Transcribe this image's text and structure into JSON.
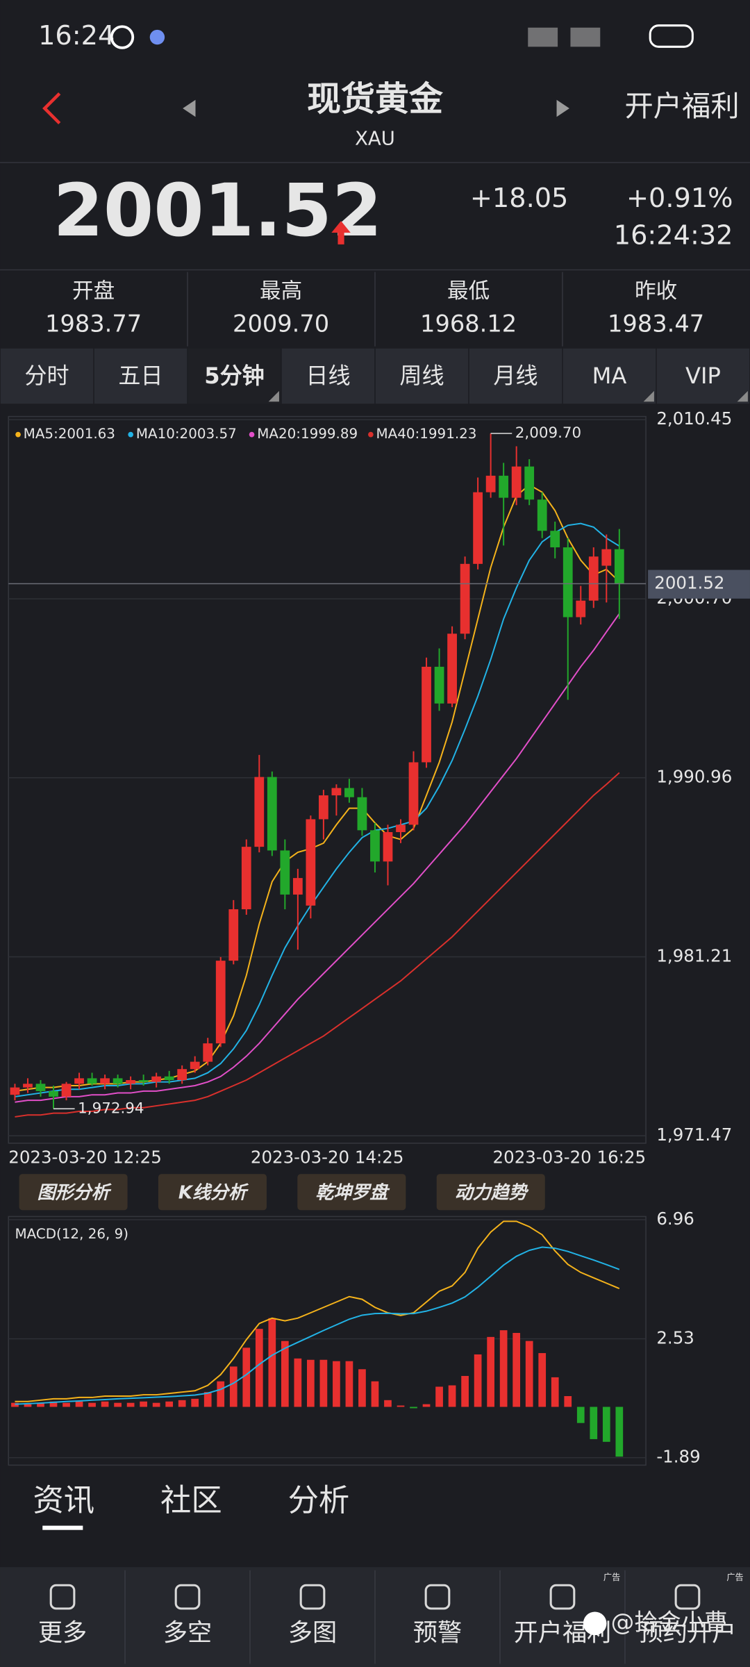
{
  "status_bar": {
    "time": "16:24"
  },
  "header": {
    "title": "现货黄金",
    "subtitle": "XAU",
    "action": "开户福利"
  },
  "quote": {
    "price": "2001.52",
    "change": "+18.05",
    "change_pct": "+0.91%",
    "time": "16:24:32"
  },
  "stats": [
    {
      "label": "开盘",
      "value": "1983.77"
    },
    {
      "label": "最高",
      "value": "2009.70"
    },
    {
      "label": "最低",
      "value": "1968.12"
    },
    {
      "label": "昨收",
      "value": "1983.47"
    }
  ],
  "tabs": [
    "分时",
    "五日",
    "5分钟",
    "日线",
    "周线",
    "月线",
    "MA",
    "VIP"
  ],
  "tools": [
    "图形分析",
    "K线分析",
    "乾坤罗盘",
    "动力趋势"
  ],
  "section_tabs": [
    "资讯",
    "社区",
    "分析"
  ],
  "nav": [
    "更多",
    "多空",
    "多图",
    "预警",
    "开户福利",
    "预约开户"
  ],
  "ad_label": "广告",
  "watermark": "@拾金小曹",
  "chart_data": [
    {
      "type": "candlestick",
      "ylim": [
        1971.47,
        2010.45
      ],
      "yticks": [
        {
          "value": 1971.47,
          "label": "1,971.47"
        },
        {
          "value": 1981.21,
          "label": "1,981.21"
        },
        {
          "value": 1990.96,
          "label": "1,990.96"
        },
        {
          "value": 2000.7,
          "label": "2,000.70"
        },
        {
          "value": 2010.45,
          "label": "2,010.45"
        }
      ],
      "x_labels": [
        "2023-03-20 12:25",
        "2023-03-20 14:25",
        "2023-03-20 16:25"
      ],
      "grid": true,
      "up_color": "#e8302f",
      "down_color": "#22a82b",
      "open": [
        1973.7,
        1974.1,
        1974.3,
        1973.9,
        1973.6,
        1974.3,
        1974.6,
        1974.3,
        1974.6,
        1974.3,
        1974.5,
        1974.4,
        1974.7,
        1974.5,
        1975.1,
        1975.5,
        1976.5,
        1981.0,
        1983.8,
        1987.2,
        1991.0,
        1987.0,
        1984.6,
        1984.0,
        1988.7,
        1990.0,
        1990.4,
        1989.9,
        1988.1,
        1986.4,
        1988.0,
        1988.4,
        1991.8,
        1997.0,
        1995.0,
        1998.8,
        2002.6,
        2006.5,
        2007.4,
        2006.2,
        2007.9,
        2006.1,
        2004.4,
        2003.5,
        1999.7,
        2000.6,
        2002.5,
        2003.4
      ],
      "high": [
        1974.3,
        1974.6,
        1974.5,
        1974.2,
        1974.4,
        1974.9,
        1974.9,
        1974.8,
        1974.8,
        1974.7,
        1974.8,
        1974.9,
        1975.0,
        1975.3,
        1975.8,
        1976.8,
        1981.2,
        1984.3,
        1987.6,
        1992.2,
        1991.3,
        1987.6,
        1986.0,
        1988.9,
        1990.3,
        1990.6,
        1990.9,
        1990.4,
        1988.5,
        1988.4,
        1988.7,
        1992.4,
        1997.5,
        1998.0,
        1999.2,
        2003.0,
        2007.3,
        2009.7,
        2008.1,
        2009.0,
        2008.3,
        2006.5,
        2004.9,
        2004.0,
        2001.4,
        2003.5,
        2004.2,
        2004.5
      ],
      "low": [
        1973.4,
        1973.8,
        1973.6,
        1972.94,
        1973.4,
        1974.0,
        1974.2,
        1974.0,
        1974.1,
        1974.0,
        1974.2,
        1974.1,
        1974.3,
        1974.3,
        1974.9,
        1975.3,
        1976.3,
        1980.8,
        1983.5,
        1986.9,
        1986.7,
        1983.8,
        1981.6,
        1983.3,
        1987.6,
        1988.9,
        1989.6,
        1987.8,
        1985.8,
        1985.1,
        1987.4,
        1988.1,
        1991.5,
        1994.6,
        1994.8,
        1998.5,
        2002.3,
        2006.2,
        2003.6,
        2005.8,
        2005.8,
        2004.0,
        2002.9,
        1995.2,
        1999.3,
        2000.2,
        2000.5,
        1999.6
      ],
      "close": [
        1974.1,
        1974.3,
        1973.9,
        1973.6,
        1974.3,
        1974.6,
        1974.3,
        1974.6,
        1974.3,
        1974.5,
        1974.4,
        1974.7,
        1974.5,
        1975.1,
        1975.5,
        1976.5,
        1981.0,
        1983.8,
        1987.2,
        1991.0,
        1987.0,
        1984.6,
        1985.5,
        1988.7,
        1990.0,
        1990.4,
        1989.9,
        1988.1,
        1986.4,
        1988.0,
        1988.4,
        1991.8,
        1997.0,
        1995.0,
        1998.8,
        2002.6,
        2006.5,
        2007.4,
        2006.2,
        2007.9,
        2006.1,
        2004.4,
        2003.5,
        1999.7,
        2000.6,
        2003.0,
        2003.4,
        2001.52
      ],
      "series": [
        {
          "label": "MA5:2001.63",
          "color": "#f5b31b",
          "values": [
            1973.9,
            1974.0,
            1974.1,
            1974.1,
            1974.2,
            1974.2,
            1974.3,
            1974.3,
            1974.3,
            1974.4,
            1974.4,
            1974.5,
            1974.6,
            1974.8,
            1975.0,
            1975.5,
            1976.5,
            1978.0,
            1980.2,
            1983.0,
            1985.3,
            1986.4,
            1986.9,
            1987.1,
            1987.4,
            1988.4,
            1989.3,
            1989.3,
            1988.5,
            1987.8,
            1987.6,
            1988.2,
            1990.0,
            1991.8,
            1994.0,
            1996.8,
            1999.6,
            2002.4,
            2004.6,
            2006.3,
            2006.9,
            2006.5,
            2005.5,
            2004.0,
            2002.8,
            2002.0,
            2002.3,
            2001.63
          ]
        },
        {
          "label": "MA10:2003.57",
          "color": "#22b3e6",
          "values": [
            1973.6,
            1973.7,
            1973.8,
            1973.9,
            1974.0,
            1974.0,
            1974.1,
            1974.2,
            1974.2,
            1974.3,
            1974.3,
            1974.4,
            1974.4,
            1974.5,
            1974.6,
            1974.9,
            1975.4,
            1976.2,
            1977.2,
            1978.6,
            1980.2,
            1981.7,
            1982.9,
            1984.0,
            1985.0,
            1986.0,
            1986.9,
            1987.7,
            1988.1,
            1988.2,
            1988.4,
            1988.6,
            1989.3,
            1990.5,
            1991.9,
            1993.6,
            1995.4,
            1997.4,
            1999.6,
            2001.3,
            2002.8,
            2003.8,
            2004.3,
            2004.7,
            2004.8,
            2004.6,
            2004.0,
            2003.57
          ]
        },
        {
          "label": "MA20:1999.89",
          "color": "#e24fc9",
          "values": [
            1973.3,
            1973.4,
            1973.4,
            1973.5,
            1973.6,
            1973.6,
            1973.7,
            1973.7,
            1973.8,
            1973.8,
            1973.9,
            1973.9,
            1974.0,
            1974.1,
            1974.2,
            1974.4,
            1974.7,
            1975.2,
            1975.8,
            1976.5,
            1977.3,
            1978.1,
            1978.9,
            1979.6,
            1980.3,
            1981.0,
            1981.7,
            1982.4,
            1983.1,
            1983.8,
            1984.5,
            1985.2,
            1986.0,
            1986.8,
            1987.6,
            1988.4,
            1989.3,
            1990.2,
            1991.1,
            1992.0,
            1993.0,
            1994.0,
            1995.0,
            1996.0,
            1997.0,
            1997.9,
            1998.9,
            1999.89
          ]
        },
        {
          "label": "MA40:1991.23",
          "color": "#d9302c",
          "values": [
            1972.5,
            1972.6,
            1972.6,
            1972.7,
            1972.7,
            1972.8,
            1972.8,
            1972.9,
            1972.9,
            1973.0,
            1973.0,
            1973.1,
            1973.2,
            1973.3,
            1973.4,
            1973.6,
            1973.9,
            1974.2,
            1974.5,
            1974.9,
            1975.3,
            1975.7,
            1976.1,
            1976.5,
            1976.9,
            1977.4,
            1977.9,
            1978.4,
            1978.9,
            1979.4,
            1979.9,
            1980.5,
            1981.1,
            1981.7,
            1982.3,
            1983.0,
            1983.7,
            1984.4,
            1985.1,
            1985.8,
            1986.5,
            1987.2,
            1987.9,
            1988.6,
            1989.3,
            1990.0,
            1990.6,
            1991.23
          ]
        }
      ],
      "high_label": "2,009.70",
      "low_label": "1,972.94",
      "last_price": {
        "value": 2001.52,
        "label": "2001.52"
      }
    },
    {
      "type": "macd",
      "title": "MACD(12, 26, 9)",
      "ylim": [
        -1.89,
        6.96
      ],
      "yticks": [
        6.96,
        2.53,
        -1.89
      ],
      "up_color": "#e8302f",
      "down_color": "#22a82b",
      "values": [
        0.15,
        0.1,
        0.15,
        0.2,
        0.15,
        0.2,
        0.15,
        0.2,
        0.15,
        0.15,
        0.2,
        0.15,
        0.2,
        0.25,
        0.3,
        0.55,
        0.95,
        1.5,
        2.2,
        2.9,
        3.3,
        2.45,
        1.8,
        1.75,
        1.75,
        1.7,
        1.7,
        1.4,
        0.95,
        0.25,
        0.05,
        -0.05,
        0.1,
        0.75,
        0.8,
        1.15,
        1.95,
        2.6,
        2.85,
        2.75,
        2.45,
        2.0,
        1.1,
        0.4,
        -0.6,
        -1.2,
        -1.3,
        -1.85
      ],
      "series": [
        {
          "color": "#f5b31b",
          "values": [
            0.2,
            0.2,
            0.25,
            0.3,
            0.3,
            0.35,
            0.35,
            0.4,
            0.4,
            0.4,
            0.45,
            0.45,
            0.5,
            0.55,
            0.6,
            0.8,
            1.2,
            1.8,
            2.5,
            3.1,
            3.3,
            3.2,
            3.3,
            3.5,
            3.7,
            3.9,
            4.1,
            4.0,
            3.7,
            3.5,
            3.4,
            3.5,
            3.9,
            4.3,
            4.5,
            5.0,
            5.9,
            6.5,
            6.9,
            6.9,
            6.7,
            6.4,
            5.8,
            5.3,
            5.0,
            4.8,
            4.6,
            4.4
          ]
        },
        {
          "color": "#22b3e6",
          "values": [
            0.1,
            0.12,
            0.14,
            0.17,
            0.2,
            0.22,
            0.25,
            0.27,
            0.3,
            0.32,
            0.34,
            0.36,
            0.38,
            0.41,
            0.44,
            0.51,
            0.65,
            0.88,
            1.2,
            1.58,
            1.92,
            2.18,
            2.4,
            2.62,
            2.84,
            3.05,
            3.26,
            3.41,
            3.47,
            3.48,
            3.46,
            3.47,
            3.56,
            3.7,
            3.86,
            4.09,
            4.45,
            4.86,
            5.27,
            5.6,
            5.82,
            5.94,
            5.9,
            5.78,
            5.62,
            5.46,
            5.29,
            5.11
          ]
        }
      ]
    }
  ]
}
